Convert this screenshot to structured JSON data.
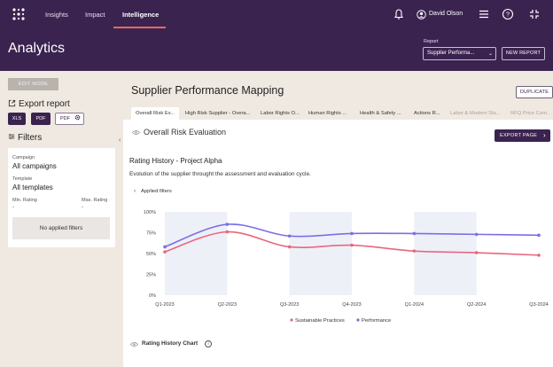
{
  "nav": {
    "items": [
      "Insights",
      "Impact",
      "Intelligence"
    ],
    "user": "David Olson",
    "accent": "#e86a5a",
    "brand": "#3b2350"
  },
  "header": {
    "title": "Analytics",
    "report_label": "Report",
    "report_selected": "Supplier Performa...",
    "new_report": "NEW REPORT"
  },
  "left": {
    "edit_mode": "EDIT MODE",
    "export_title": "Export report",
    "export_buttons": [
      "XLS",
      "PDF",
      "PDF"
    ],
    "filters_title": "Filters",
    "campaign_label": "Campaign",
    "campaign_value": "All campaigns",
    "template_label": "Template",
    "template_value": "All templates",
    "min_rating_label": "Min. Rating",
    "max_rating_label": "Max. Rating",
    "min_rating_value": "-",
    "max_rating_value": "-",
    "no_filters": "No applied filters"
  },
  "main": {
    "report_title": "Supplier Performance Mapping",
    "duplicate": "DUPLICATE",
    "tabs": [
      "Overall Risk Ev...",
      "High Risk Supplier - Overa...",
      "Labor Rights O...",
      "Human Rights ...",
      "Health & Safety ...",
      "Actions R...",
      "Labor & Modern Sla...",
      "RFQ Price Com..."
    ],
    "section_title": "Overall Risk Evaluation",
    "export_page": "EXPORT PAGE",
    "rating_title": "Rating History - Project Alpha",
    "rating_desc": "Evolution of the supplier throught the assessment and evaluation cycle.",
    "applied_filters": "Applied filters",
    "chart2_title": "Rating History Chart"
  },
  "chart_data": {
    "type": "line",
    "title": "",
    "xlabel": "",
    "ylabel": "",
    "categories": [
      "Q1-2023",
      "Q2-2023",
      "Q3-2023",
      "Q4-2023",
      "Q1-2024",
      "Q2-2024",
      "Q3-2024"
    ],
    "yticks": [
      "0%",
      "25%",
      "50%",
      "75%",
      "100%"
    ],
    "ylim": [
      0,
      100
    ],
    "series": [
      {
        "name": "Sustainable Practices",
        "color": "#e8677e",
        "values": [
          52,
          76,
          58,
          60,
          53,
          51,
          48
        ]
      },
      {
        "name": "Performance",
        "color": "#7b6ee6",
        "values": [
          58,
          85,
          71,
          74,
          74,
          73,
          72
        ]
      }
    ],
    "legend": "bottom"
  }
}
